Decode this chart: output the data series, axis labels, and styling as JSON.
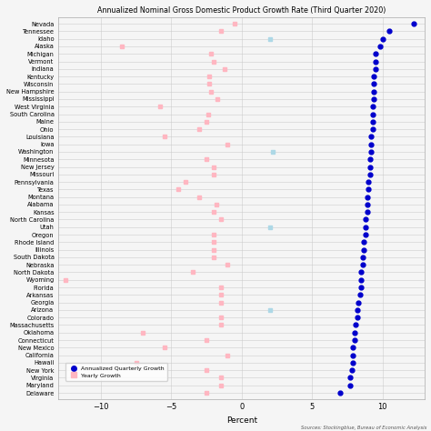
{
  "title": "Annualized Nominal Gross Domestic Product Growth Rate (Third Quarter 2020)",
  "xlabel": "Percent",
  "source": "Sources: Stockingblue, Bureau of Economic Analysis",
  "states": [
    "Nevada",
    "Tennessee",
    "Idaho",
    "Alaska",
    "Michigan",
    "Vermont",
    "Indiana",
    "Kentucky",
    "Wisconsin",
    "New Hampshire",
    "Mississippi",
    "West Virginia",
    "South Carolina",
    "Maine",
    "Ohio",
    "Louisiana",
    "Iowa",
    "Washington",
    "Minnesota",
    "New Jersey",
    "Missouri",
    "Pennsylvania",
    "Texas",
    "Montana",
    "Alabama",
    "Kansas",
    "North Carolina",
    "Utah",
    "Oregon",
    "Rhode Island",
    "Illinois",
    "South Dakota",
    "Nebraska",
    "North Dakota",
    "Wyoming",
    "Florida",
    "Arkansas",
    "Georgia",
    "Arizona",
    "Colorado",
    "Massachusetts",
    "Oklahoma",
    "Connecticut",
    "New Mexico",
    "California",
    "Hawaii",
    "New York",
    "Virginia",
    "Maryland",
    "Delaware"
  ],
  "yearly_growth": [
    -0.5,
    -1.5,
    null,
    -8.5,
    -2.2,
    -2.0,
    -1.2,
    -2.3,
    -2.3,
    -2.2,
    -1.7,
    -5.8,
    -2.4,
    -2.5,
    -3.0,
    -5.5,
    -1.0,
    null,
    -2.5,
    -2.0,
    -2.0,
    -4.0,
    -4.5,
    -3.0,
    -1.8,
    -2.0,
    -1.5,
    null,
    -2.0,
    -2.0,
    -2.0,
    -2.0,
    -1.0,
    -3.5,
    -12.5,
    -1.5,
    -1.5,
    -1.5,
    null,
    -1.5,
    -1.5,
    -7.0,
    -2.5,
    -5.5,
    -1.0,
    -7.5,
    -2.5,
    -1.5,
    -1.5,
    -2.5
  ],
  "special_cyan_yearly": {
    "Idaho": 2.0,
    "Washington": 2.2,
    "Utah": 2.0,
    "Arizona": 2.0
  },
  "annualized_quarterly": [
    12.2,
    10.5,
    10.0,
    9.8,
    9.5,
    9.5,
    9.5,
    9.4,
    9.4,
    9.4,
    9.4,
    9.3,
    9.3,
    9.3,
    9.3,
    9.2,
    9.2,
    9.2,
    9.1,
    9.1,
    9.1,
    9.0,
    9.0,
    8.9,
    8.9,
    8.9,
    8.8,
    8.8,
    8.8,
    8.7,
    8.7,
    8.6,
    8.6,
    8.5,
    8.5,
    8.5,
    8.4,
    8.3,
    8.2,
    8.2,
    8.1,
    8.0,
    8.0,
    7.9,
    7.9,
    7.9,
    7.8,
    7.7,
    7.7,
    7.0
  ],
  "dot_color_annual": "#0000CC",
  "dot_color_yearly": "#FFB6C1",
  "dot_color_special": "#ADD8E6",
  "bg_color": "#F5F5F5",
  "grid_color": "#CCCCCC",
  "xlim": [
    -13,
    13
  ],
  "xticks": [
    -10,
    -5,
    0,
    5,
    10
  ]
}
